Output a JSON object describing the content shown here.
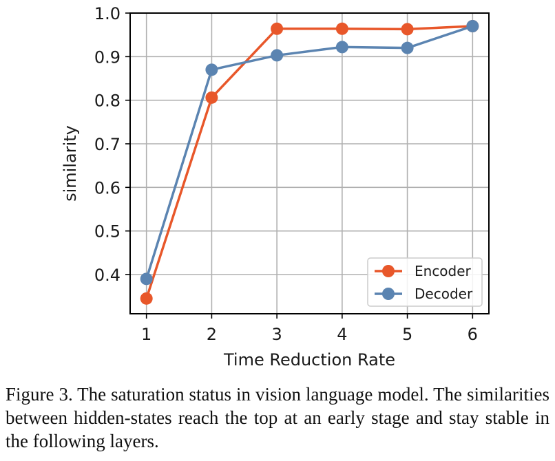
{
  "chart_data": {
    "type": "line",
    "xlabel": "Time Reduction Rate",
    "ylabel": "similarity",
    "x": [
      1,
      2,
      3,
      4,
      5,
      6
    ],
    "xticks": [
      "1",
      "2",
      "3",
      "4",
      "5",
      "6"
    ],
    "yticks": [
      "0.4",
      "0.5",
      "0.6",
      "0.7",
      "0.8",
      "0.9",
      "1.0"
    ],
    "xlim": [
      0.75,
      6.25
    ],
    "ylim": [
      0.31,
      1.0
    ],
    "grid": true,
    "legend_position": "lower-right",
    "series": [
      {
        "name": "Encoder",
        "color": "#e8572a",
        "values": [
          0.345,
          0.806,
          0.964,
          0.964,
          0.963,
          0.97
        ]
      },
      {
        "name": "Decoder",
        "color": "#5b84b1",
        "values": [
          0.39,
          0.87,
          0.903,
          0.922,
          0.92,
          0.97
        ]
      }
    ]
  },
  "caption": "Figure 3.  The saturation status in vision language model.  The similarities between hidden-states reach the top at an early stage and stay stable in the following layers."
}
